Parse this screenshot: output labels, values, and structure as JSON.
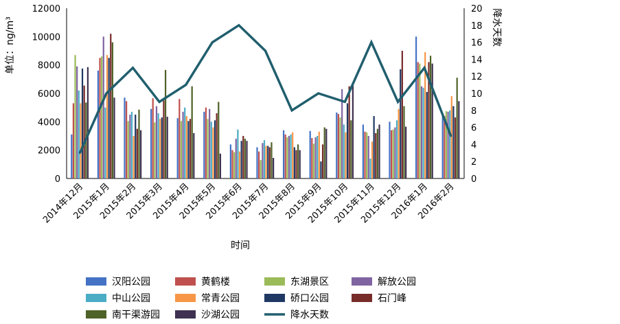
{
  "chart_data": {
    "type": "bar",
    "x_title": "时间",
    "y_left_title": "单位：ng/m³",
    "y_right_title": "降水天数",
    "ylim_left": [
      0,
      12000
    ],
    "yticks_left": [
      0,
      2000,
      4000,
      6000,
      8000,
      10000,
      12000
    ],
    "ylim_right": [
      0,
      20
    ],
    "yticks_right": [
      0,
      2,
      4,
      6,
      8,
      10,
      12,
      14,
      16,
      18,
      20
    ],
    "categories": [
      "2014年12月",
      "2015年1月",
      "2015年2月",
      "2015年3月",
      "2015年4月",
      "2015年5月",
      "2015年6月",
      "2015年7月",
      "2015年8月",
      "2015年9月",
      "2015年10月",
      "2015年11月",
      "2015年12月",
      "2016年1月",
      "2016年2月"
    ],
    "series": [
      {
        "name": "汉阳公园",
        "color": "#4472C4",
        "values": [
          3100,
          7600,
          5700,
          4900,
          4250,
          4700,
          2400,
          2200,
          3400,
          3350,
          4650,
          3800,
          4000,
          10000,
          4500
        ]
      },
      {
        "name": "黄鹤楼",
        "color": "#C0504D",
        "values": [
          5300,
          8500,
          5450,
          5650,
          5600,
          5000,
          2000,
          1900,
          3100,
          2850,
          4550,
          3300,
          3400,
          8200,
          4400
        ]
      },
      {
        "name": "东湖景区",
        "color": "#9BBB59",
        "values": [
          8700,
          8600,
          4050,
          3950,
          4050,
          4200,
          1850,
          1300,
          2900,
          2450,
          4300,
          3250,
          3450,
          8100,
          4750
        ]
      },
      {
        "name": "解放公园",
        "color": "#8064A2",
        "values": [
          7900,
          10000,
          4500,
          5100,
          4700,
          4900,
          2800,
          2500,
          3000,
          2900,
          6300,
          3000,
          3600,
          6500,
          4700
        ]
      },
      {
        "name": "中山公园",
        "color": "#4BACC6",
        "values": [
          6200,
          5000,
          4700,
          4600,
          5000,
          4000,
          3450,
          2700,
          3100,
          3000,
          3800,
          1400,
          4100,
          6400,
          4800
        ]
      },
      {
        "name": "常青公园",
        "color": "#F79646",
        "values": [
          5300,
          8700,
          3000,
          4200,
          4400,
          3600,
          1900,
          2300,
          3250,
          3300,
          3250,
          2600,
          4900,
          8900,
          5800
        ]
      },
      {
        "name": "硚口公园",
        "color": "#1F3864",
        "values": [
          7750,
          8500,
          4500,
          4300,
          4050,
          4100,
          2650,
          2300,
          2200,
          1200,
          5300,
          4400,
          7700,
          6100,
          5100
        ]
      },
      {
        "name": "石门峰",
        "color": "#772C2A",
        "values": [
          6550,
          10200,
          3500,
          5500,
          4200,
          4600,
          3000,
          2200,
          2000,
          2400,
          6500,
          3200,
          9000,
          8200,
          4300
        ]
      },
      {
        "name": "南干渠游园",
        "color": "#4F6228",
        "values": [
          5350,
          9600,
          4850,
          7650,
          6500,
          5400,
          2800,
          2550,
          2400,
          3600,
          4100,
          3500,
          5100,
          8650,
          7100
        ]
      },
      {
        "name": "沙湖公园",
        "color": "#3F3151",
        "values": [
          7850,
          5700,
          3400,
          4350,
          3200,
          1750,
          2650,
          1450,
          2000,
          3500,
          6650,
          3800,
          3650,
          8100,
          5450
        ]
      }
    ],
    "line": {
      "name": "降水天数",
      "color": "#215F6E",
      "values": [
        3,
        10,
        13,
        9,
        11,
        16,
        18,
        15,
        8,
        10,
        9,
        16,
        9,
        13,
        5
      ]
    },
    "legend_position": "bottom",
    "grid": false
  }
}
